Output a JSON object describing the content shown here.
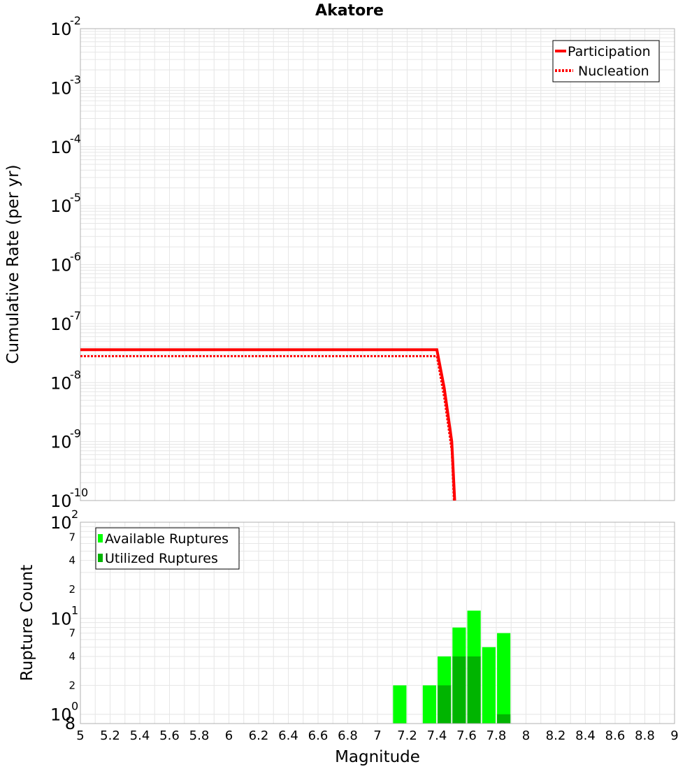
{
  "chart_data": [
    {
      "type": "line",
      "title": "Akatore",
      "xlabel": "",
      "ylabel": "Cumulative Rate (per yr)",
      "yscale": "log",
      "xlim": [
        5,
        9
      ],
      "ylim": [
        1e-10,
        0.01
      ],
      "y_tick_exponents": [
        -2,
        -3,
        -4,
        -5,
        -6,
        -7,
        -8,
        -9,
        -10
      ],
      "legend_position": "top-right",
      "series": [
        {
          "name": "Participation",
          "color": "#ff0000",
          "style": "solid",
          "x": [
            5.0,
            7.4,
            7.45,
            7.5,
            7.52
          ],
          "y": [
            3.6e-08,
            3.6e-08,
            8e-09,
            1e-09,
            1e-10
          ]
        },
        {
          "name": "Nucleation",
          "color": "#ff0000",
          "style": "dotted",
          "x": [
            5.0,
            7.4,
            7.45,
            7.5,
            7.515
          ],
          "y": [
            2.8e-08,
            2.8e-08,
            5.5e-09,
            7e-10,
            1e-10
          ]
        }
      ]
    },
    {
      "type": "bar",
      "xlabel": "Magnitude",
      "ylabel": "Rupture Count",
      "yscale": "log",
      "xlim": [
        5,
        9
      ],
      "ylim": [
        0.8,
        100
      ],
      "x_ticks": [
        "5",
        "5.2",
        "5.4",
        "5.6",
        "5.8",
        "6",
        "6.2",
        "6.4",
        "6.6",
        "6.8",
        "7",
        "7.2",
        "7.4",
        "7.6",
        "7.8",
        "8",
        "8.2",
        "8.4",
        "8.6",
        "8.8",
        "9"
      ],
      "y_major_ticks": [
        {
          "value": 100,
          "base": "10",
          "exp": "2"
        },
        {
          "value": 10,
          "base": "10",
          "exp": "1"
        },
        {
          "value": 1,
          "base": "10",
          "exp": "0"
        }
      ],
      "y_minor_ticks": [
        {
          "value": 70,
          "label": "7"
        },
        {
          "value": 40,
          "label": "4"
        },
        {
          "value": 20,
          "label": "2"
        },
        {
          "value": 7,
          "label": "7"
        },
        {
          "value": 4,
          "label": "4"
        },
        {
          "value": 2,
          "label": "2"
        }
      ],
      "y_bottom_label": "8",
      "bar_width": 0.09,
      "legend_position": "top-left",
      "series": [
        {
          "name": "Available Ruptures",
          "color": "#00ff00",
          "x": [
            7.15,
            7.35,
            7.45,
            7.55,
            7.65,
            7.75,
            7.85
          ],
          "values": [
            2,
            2,
            4,
            8,
            12,
            5,
            7
          ]
        },
        {
          "name": "Utilized Ruptures",
          "color": "#00b400",
          "x": [
            7.45,
            7.55,
            7.65,
            7.85
          ],
          "values": [
            2,
            4,
            4,
            1
          ]
        }
      ]
    }
  ]
}
